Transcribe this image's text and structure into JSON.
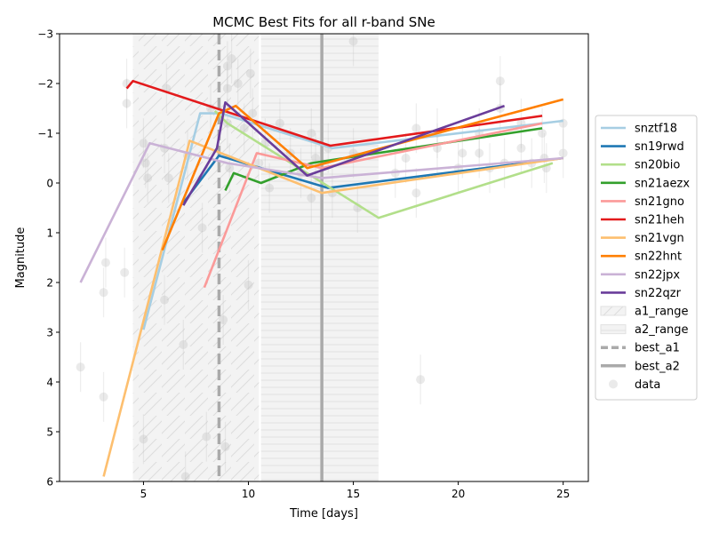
{
  "chart_data": {
    "type": "line",
    "title": "MCMC Best Fits for all r-band SNe",
    "xlabel": "Time [days]",
    "ylabel": "Magnitude",
    "xlim": [
      1,
      26.2
    ],
    "ylim": [
      6,
      -3
    ],
    "y_inverted": true,
    "grid": false,
    "legend_position": "outside-right",
    "x_ticks": [
      5,
      10,
      15,
      20,
      25
    ],
    "y_ticks": [
      -3,
      -2,
      -1,
      0,
      1,
      2,
      3,
      4,
      5,
      6
    ],
    "x_tick_labels": [
      "5",
      "10",
      "15",
      "20",
      "25"
    ],
    "y_tick_labels": [
      "−3",
      "−2",
      "−1",
      "0",
      "1",
      "2",
      "3",
      "4",
      "5",
      "6"
    ],
    "series": [
      {
        "name": "snztf18",
        "color": "#a6cee3",
        "x": [
          5.0,
          7.7,
          8.7,
          14.0,
          25.0
        ],
        "y": [
          2.95,
          -1.4,
          -1.4,
          -0.7,
          -1.25
        ]
      },
      {
        "name": "sn19rwd",
        "color": "#1f78b4",
        "x": [
          6.9,
          8.6,
          13.8,
          25.0
        ],
        "y": [
          0.4,
          -0.55,
          0.1,
          -0.5
        ]
      },
      {
        "name": "sn20bio",
        "color": "#b2df8a",
        "x": [
          8.4,
          9.0,
          16.2,
          24.5
        ],
        "y": [
          -1.45,
          -1.2,
          0.7,
          -0.4
        ]
      },
      {
        "name": "sn21aezx",
        "color": "#33a02c",
        "x": [
          8.9,
          9.3,
          10.6,
          13.0,
          24.0
        ],
        "y": [
          0.15,
          -0.2,
          0.0,
          -0.4,
          -1.1
        ]
      },
      {
        "name": "sn21gno",
        "color": "#fb9a99",
        "x": [
          7.9,
          10.4,
          13.5,
          24.0
        ],
        "y": [
          2.1,
          -0.6,
          -0.3,
          -1.2
        ]
      },
      {
        "name": "sn21heh",
        "color": "#e31a1c",
        "x": [
          4.2,
          4.5,
          13.9,
          24.0
        ],
        "y": [
          -1.9,
          -2.05,
          -0.75,
          -1.35
        ]
      },
      {
        "name": "sn21vgn",
        "color": "#fdbf6f",
        "x": [
          3.1,
          7.2,
          13.5,
          25.0
        ],
        "y": [
          5.9,
          -0.85,
          0.2,
          -0.5
        ]
      },
      {
        "name": "sn22hnt",
        "color": "#ff7f00",
        "x": [
          5.9,
          8.6,
          9.4,
          12.8,
          25.0
        ],
        "y": [
          1.35,
          -1.4,
          -1.55,
          -0.3,
          -1.68
        ]
      },
      {
        "name": "sn22jpx",
        "color": "#cab2d6",
        "x": [
          2.0,
          5.3,
          9.0,
          13.5,
          25.0
        ],
        "y": [
          2.0,
          -0.8,
          -0.4,
          -0.1,
          -0.5
        ]
      },
      {
        "name": "sn22qzr",
        "color": "#6a3d9a",
        "x": [
          6.9,
          8.5,
          8.9,
          12.8,
          22.2
        ],
        "y": [
          0.45,
          -0.7,
          -1.62,
          -0.15,
          -1.55
        ]
      }
    ],
    "regions": [
      {
        "name": "a1_range",
        "x": [
          4.5,
          10.5
        ],
        "color": "#d8d8d8",
        "hatch": "/"
      },
      {
        "name": "a2_range",
        "x": [
          10.6,
          16.2
        ],
        "color": "#d8d8d8",
        "hatch": "-"
      }
    ],
    "vlines": [
      {
        "name": "best_a1",
        "x": 8.6,
        "color": "#aaaaaa",
        "style": "dashed"
      },
      {
        "name": "best_a2",
        "x": 13.5,
        "color": "#aaaaaa",
        "style": "solid"
      }
    ],
    "data_points": {
      "name": "data",
      "color": "#bbbbbb",
      "x": [
        2.0,
        3.1,
        3.1,
        3.2,
        4.1,
        4.2,
        4.2,
        5.0,
        5.0,
        5.1,
        5.2,
        6.0,
        6.0,
        6.1,
        6.2,
        6.9,
        7.0,
        7.1,
        7.8,
        8.0,
        8.2,
        8.8,
        8.9,
        9.0,
        9.0,
        9.0,
        9.1,
        9.2,
        9.5,
        9.8,
        10.0,
        10.1,
        10.2,
        10.5,
        10.8,
        11.0,
        11.5,
        12.0,
        12.5,
        13.0,
        13.0,
        13.2,
        13.8,
        14.0,
        15.0,
        15.0,
        15.2,
        17.0,
        17.5,
        18.0,
        18.0,
        18.2,
        19.0,
        19.0,
        20.0,
        20.2,
        21.0,
        21.0,
        21.5,
        22.0,
        22.0,
        22.2,
        23.0,
        23.0,
        23.5,
        24.0,
        24.1,
        24.2,
        25.0,
        25.0
      ],
      "y": [
        3.7,
        4.3,
        2.2,
        1.6,
        1.8,
        -1.6,
        -2.0,
        -0.8,
        5.15,
        -0.4,
        -0.1,
        2.35,
        -0.7,
        -1.9,
        -0.1,
        3.25,
        5.9,
        -0.55,
        0.9,
        5.1,
        -1.5,
        2.75,
        5.3,
        -2.35,
        -1.9,
        -1.2,
        -0.3,
        -2.5,
        -2.0,
        -1.1,
        2.05,
        -2.2,
        -1.4,
        -0.4,
        -0.8,
        0.1,
        -1.2,
        -0.6,
        -0.2,
        -1.0,
        0.3,
        -0.5,
        -0.7,
        0.2,
        -2.85,
        -0.6,
        0.5,
        -0.2,
        -0.5,
        -1.1,
        0.2,
        3.95,
        -1.0,
        -0.7,
        -0.3,
        -0.6,
        -1.0,
        -0.6,
        -0.3,
        -2.05,
        -1.5,
        -0.4,
        -1.2,
        -0.7,
        -0.4,
        -1.0,
        -0.5,
        -0.3,
        -0.6,
        -1.2
      ]
    }
  }
}
